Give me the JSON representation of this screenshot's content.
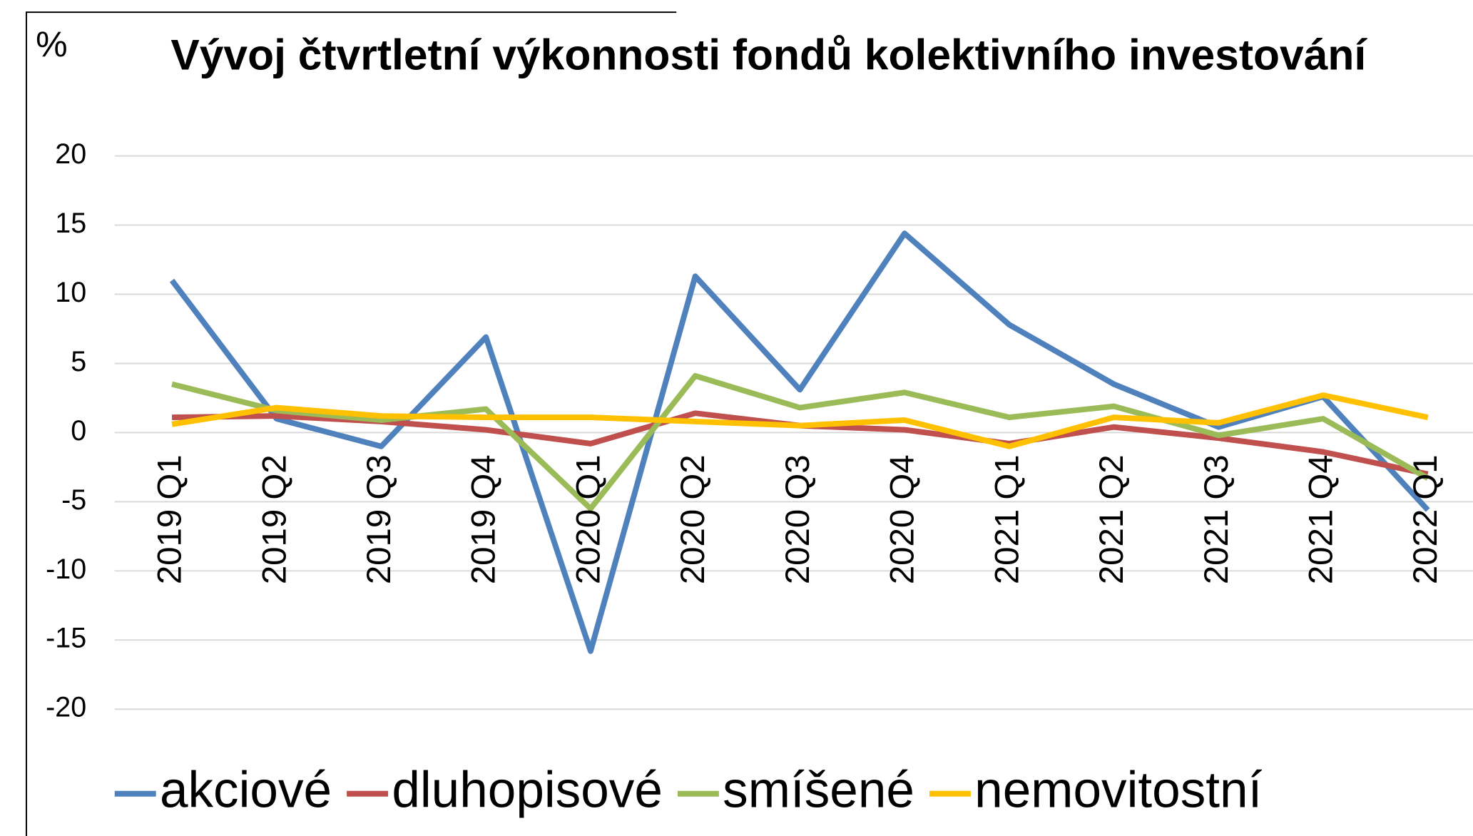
{
  "chart_data": {
    "type": "line",
    "title": "Vývoj čtvrtletní výkonnosti fondů kolektivního investování",
    "y_label": "%",
    "categories": [
      "2019 Q1",
      "2019 Q2",
      "2019 Q3",
      "2019 Q4",
      "2020 Q1",
      "2020 Q2",
      "2020 Q3",
      "2020 Q4",
      "2021 Q1",
      "2021 Q2",
      "2021 Q3",
      "2021 Q4",
      "2022 Q1"
    ],
    "series": [
      {
        "name": "akciové",
        "color": "#4f81bd",
        "values": [
          11.0,
          1.0,
          -1.0,
          6.9,
          -15.8,
          11.3,
          3.1,
          14.4,
          7.8,
          3.5,
          0.4,
          2.6,
          -5.6
        ]
      },
      {
        "name": "dluhopisové",
        "color": "#c0504d",
        "values": [
          1.1,
          1.2,
          0.8,
          0.2,
          -0.8,
          1.4,
          0.5,
          0.2,
          -0.8,
          0.4,
          -0.4,
          -1.4,
          -3.0
        ]
      },
      {
        "name": "smíšené",
        "color": "#9bbb59",
        "values": [
          3.5,
          1.6,
          0.9,
          1.7,
          -5.5,
          4.1,
          1.8,
          2.9,
          1.1,
          1.9,
          -0.2,
          1.0,
          -3.3
        ]
      },
      {
        "name": "nemovitostní",
        "color": "#ffc000",
        "values": [
          0.6,
          1.8,
          1.2,
          1.1,
          1.1,
          0.8,
          0.5,
          0.9,
          -1.0,
          1.1,
          0.7,
          2.7,
          1.1
        ]
      }
    ],
    "ylim": [
      -20,
      20
    ],
    "yticks": [
      -20,
      -15,
      -10,
      -5,
      0,
      5,
      10,
      15,
      20
    ],
    "grid": true,
    "legend": "bottom"
  }
}
